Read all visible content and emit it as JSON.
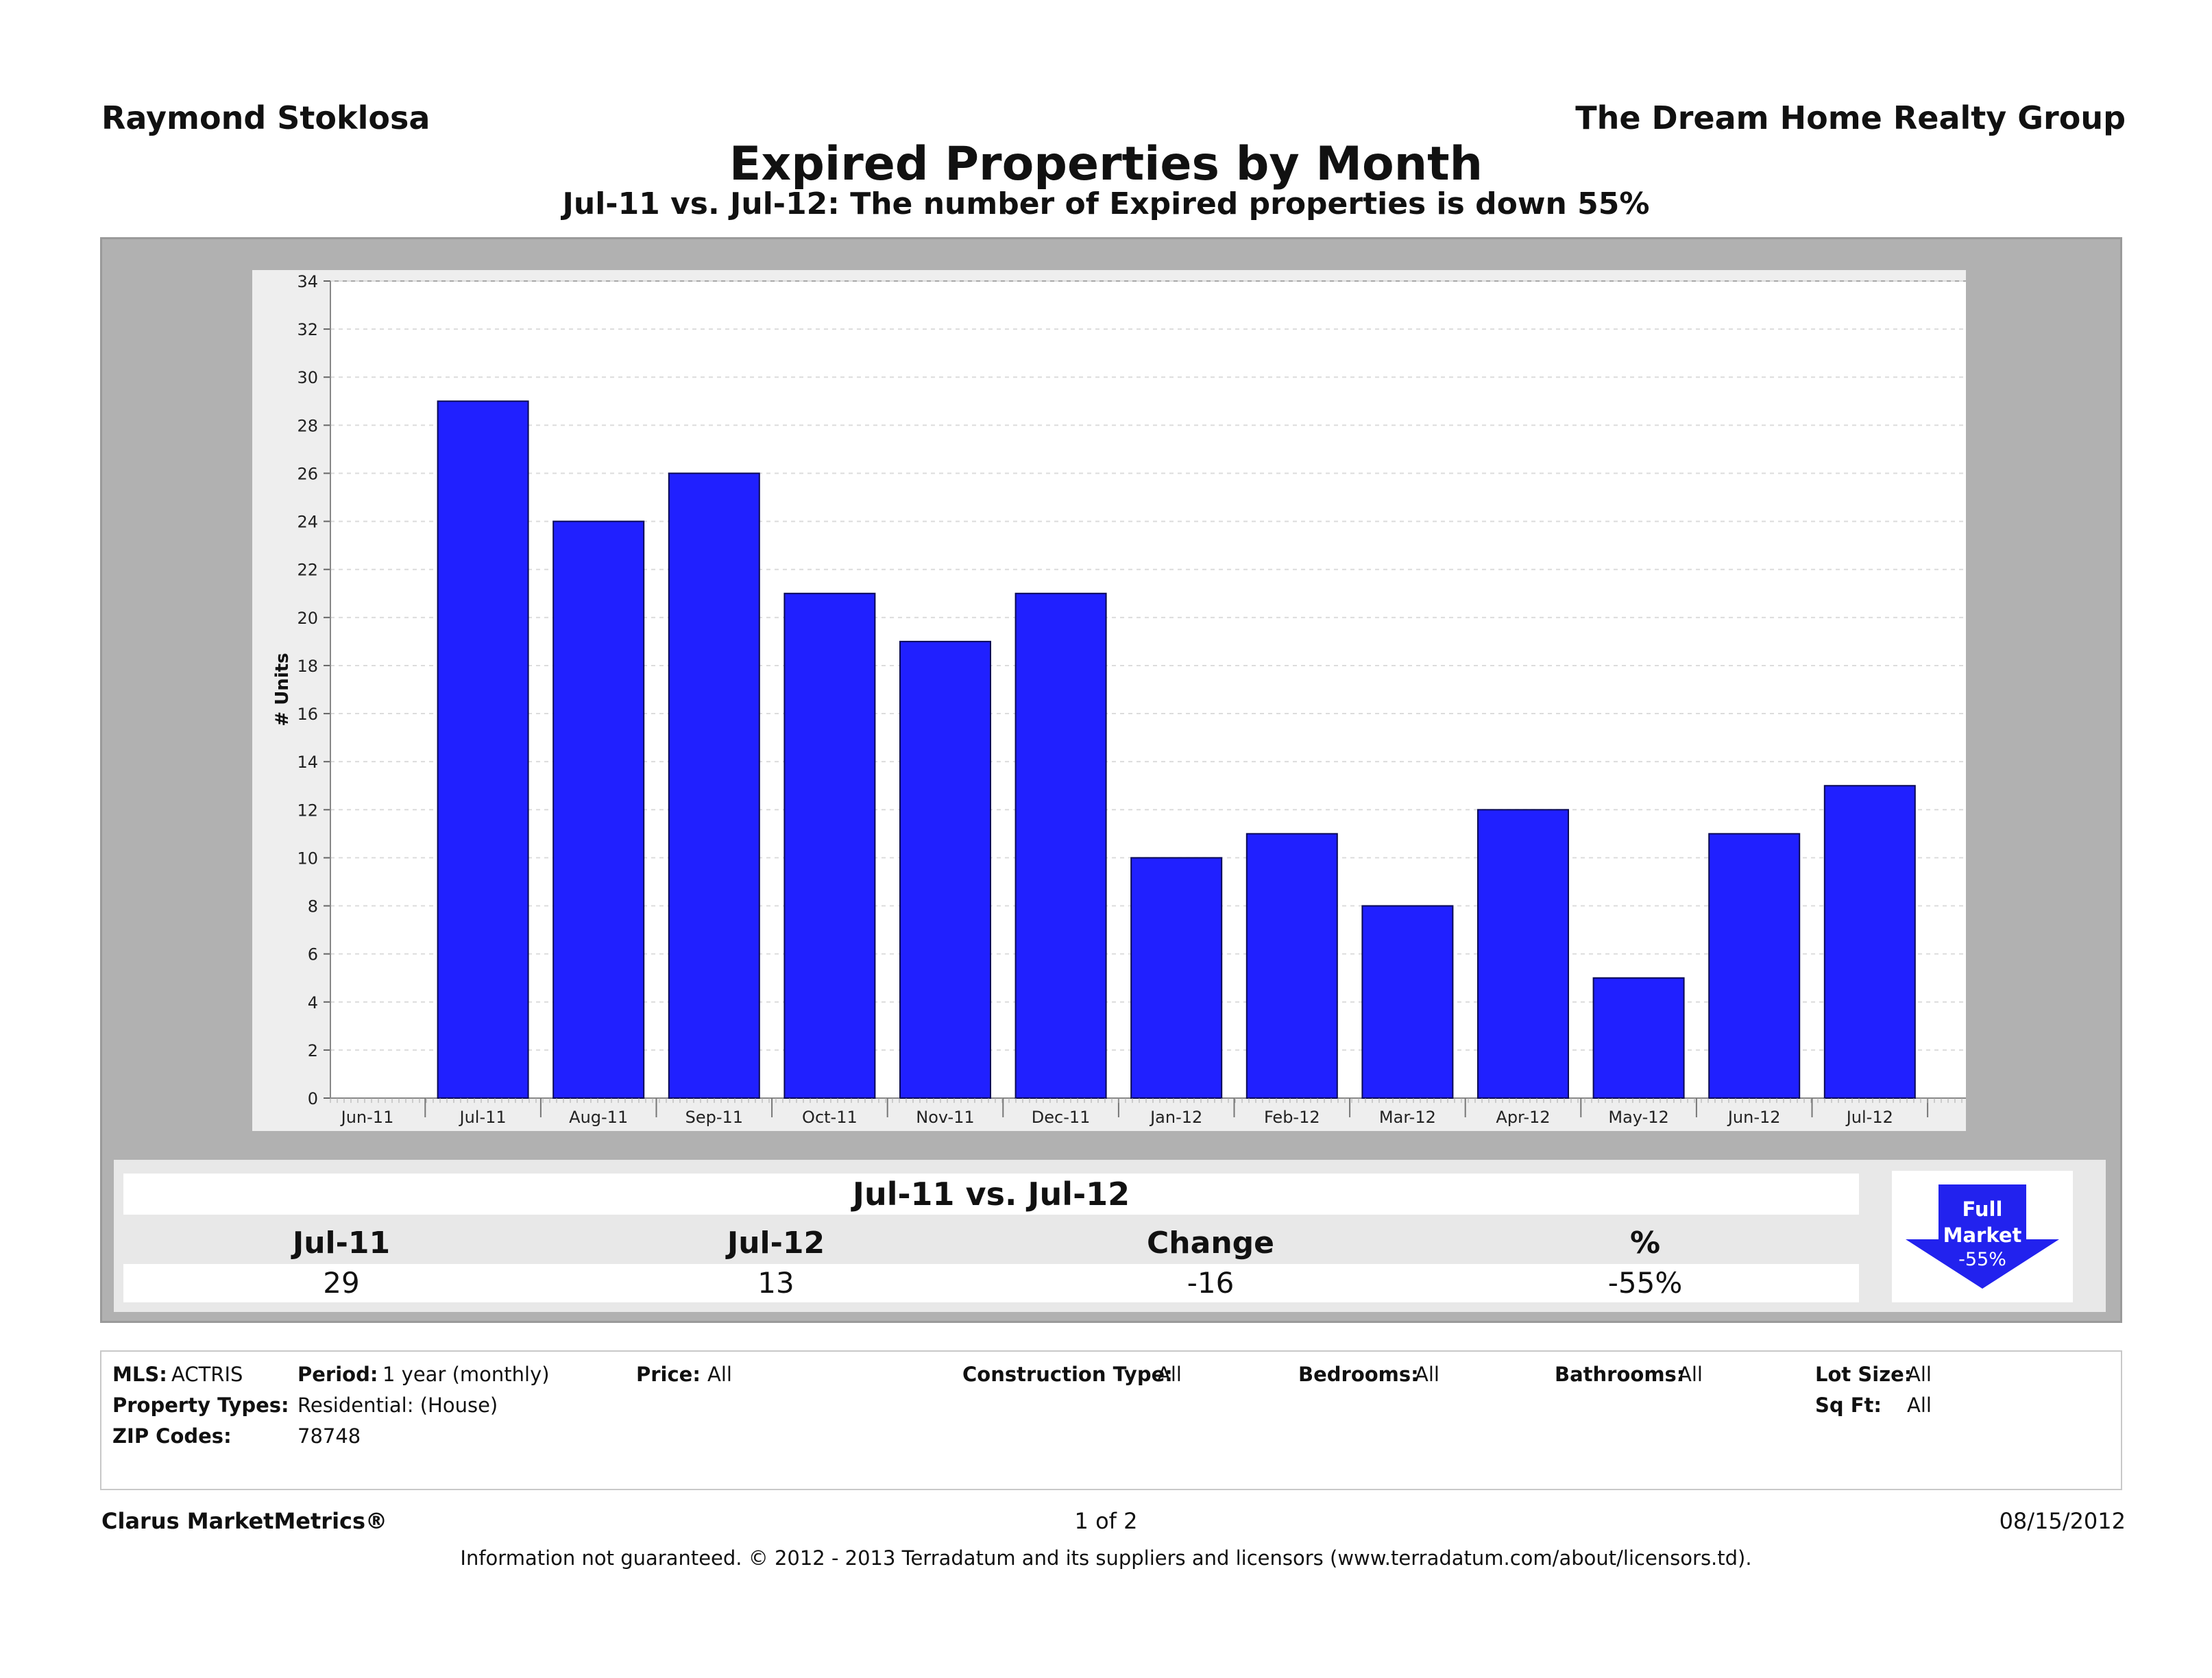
{
  "header": {
    "agent": "Raymond Stoklosa",
    "company": "The Dream Home Realty Group",
    "title": "Expired Properties by Month",
    "subtitle": "Jul-11 vs. Jul-12: The number of Expired properties is down 55%"
  },
  "chart_data": {
    "type": "bar",
    "categories": [
      "Jun-11",
      "Jul-11",
      "Aug-11",
      "Sep-11",
      "Oct-11",
      "Nov-11",
      "Dec-11",
      "Jan-12",
      "Feb-12",
      "Mar-12",
      "Apr-12",
      "May-12",
      "Jun-12",
      "Jul-12"
    ],
    "values": [
      0,
      29,
      24,
      26,
      21,
      19,
      21,
      10,
      11,
      8,
      12,
      5,
      11,
      13
    ],
    "ylabel": "# Units",
    "xlabel": "",
    "ylim": [
      0,
      34
    ],
    "yticks": [
      0,
      2,
      4,
      6,
      8,
      10,
      12,
      14,
      16,
      18,
      20,
      22,
      24,
      26,
      28,
      30,
      32,
      34
    ],
    "grid": true,
    "bar_color": "#2020ff"
  },
  "comparison": {
    "title": "Jul-11 vs. Jul-12",
    "headers": [
      "Jul-11",
      "Jul-12",
      "Change",
      "%"
    ],
    "values": [
      "29",
      "13",
      "-16",
      "-55%"
    ]
  },
  "badge": {
    "line1": "Full",
    "line2": "Market",
    "line3": "-55%",
    "color": "#2222ee"
  },
  "filters": {
    "mls_label": "MLS:",
    "mls_value": "ACTRIS",
    "period_label": "Period:",
    "period_value": "1 year (monthly)",
    "price_label": "Price:",
    "price_value": "All",
    "construction_label": "Construction Type:",
    "construction_value": "All",
    "bedrooms_label": "Bedrooms:",
    "bedrooms_value": "All",
    "bathrooms_label": "Bathrooms:",
    "bathrooms_value": "All",
    "lotsize_label": "Lot Size:",
    "lotsize_value": "All",
    "proptypes_label": "Property Types:",
    "proptypes_value": "Residential: (House)",
    "sqft_label": "Sq Ft:",
    "sqft_value": "All",
    "zip_label": "ZIP Codes:",
    "zip_value": "78748"
  },
  "footer": {
    "brand": "Clarus MarketMetrics®",
    "page": "1 of 2",
    "date": "08/15/2012",
    "disclaimer": "Information not guaranteed.  © 2012 - 2013 Terradatum and its suppliers and licensors (www.terradatum.com/about/licensors.td)."
  }
}
